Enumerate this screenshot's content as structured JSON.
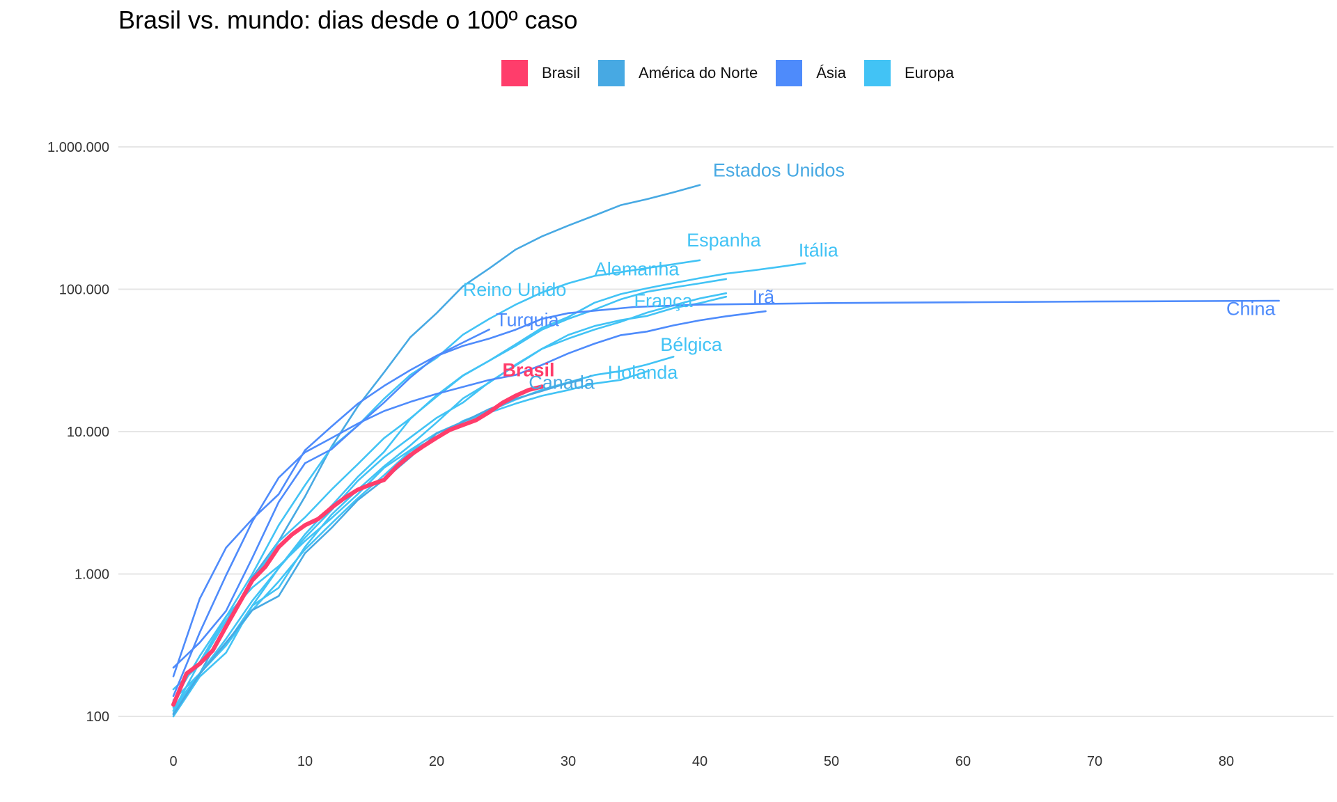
{
  "chart_data": {
    "type": "line",
    "title": "Brasil vs. mundo: dias desde o 100º caso",
    "xlabel": "",
    "ylabel": "",
    "x_scale": "linear",
    "y_scale": "log",
    "xlim": [
      0,
      85
    ],
    "ylim": [
      100,
      1000000
    ],
    "x_ticks": [
      0,
      10,
      20,
      30,
      40,
      50,
      60,
      70,
      80
    ],
    "x_tick_labels": [
      "0",
      "10",
      "20",
      "30",
      "40",
      "50",
      "60",
      "70",
      "80"
    ],
    "y_ticks": [
      100,
      1000,
      10000,
      100000,
      1000000
    ],
    "y_tick_labels": [
      "100",
      "1.000",
      "10.000",
      "100.000",
      "1.000.000"
    ],
    "grid": "horizontal",
    "legend_position": "top",
    "legend": [
      {
        "label": "Brasil",
        "color": "#FF3D6B"
      },
      {
        "label": "América do Norte",
        "color": "#47A9E3"
      },
      {
        "label": "Ásia",
        "color": "#4E8BFB"
      },
      {
        "label": "Europa",
        "color": "#42C3F5"
      }
    ],
    "series": [
      {
        "name": "Brasil",
        "group": "Brasil",
        "color": "#FF3D6B",
        "emphasis": true,
        "x": [
          0,
          1,
          2,
          3,
          4,
          5,
          6,
          7,
          8,
          9,
          10,
          11,
          12,
          13,
          14,
          15,
          16,
          17,
          18,
          19,
          20,
          21,
          22,
          23,
          24,
          25,
          26,
          27,
          28
        ],
        "y": [
          121,
          200,
          234,
          291,
          428,
          621,
          904,
          1128,
          1546,
          1891,
          2201,
          2433,
          2915,
          3417,
          3904,
          4256,
          4579,
          5717,
          6836,
          7910,
          9056,
          10278,
          11130,
          12056,
          13717,
          15927,
          17857,
          19638,
          20727
        ]
      },
      {
        "name": "Estados Unidos",
        "group": "América do Norte",
        "color": "#47A9E3",
        "x": [
          0,
          2,
          4,
          6,
          8,
          10,
          12,
          14,
          16,
          18,
          20,
          22,
          24,
          26,
          28,
          30,
          32,
          34,
          36,
          38,
          40
        ],
        "y": [
          105,
          200,
          430,
          950,
          1700,
          3500,
          7800,
          15000,
          26000,
          46000,
          68000,
          105000,
          140000,
          190000,
          235000,
          280000,
          330000,
          390000,
          430000,
          480000,
          540000
        ]
      },
      {
        "name": "Espanha",
        "group": "Europa",
        "color": "#42C3F5",
        "x": [
          0,
          2,
          4,
          6,
          8,
          10,
          12,
          14,
          16,
          18,
          20,
          22,
          24,
          26,
          28,
          30,
          32,
          34,
          36,
          38,
          40
        ],
        "y": [
          110,
          240,
          500,
          1000,
          2200,
          4200,
          7700,
          11000,
          17000,
          25000,
          33000,
          48000,
          62000,
          78000,
          95000,
          110000,
          124000,
          132000,
          141000,
          150000,
          160000
        ]
      },
      {
        "name": "Itália",
        "group": "Europa",
        "color": "#42C3F5",
        "x": [
          0,
          2,
          4,
          6,
          8,
          10,
          12,
          14,
          16,
          18,
          20,
          22,
          24,
          26,
          28,
          30,
          32,
          34,
          36,
          38,
          40,
          42,
          44,
          46,
          48
        ],
        "y": [
          155,
          230,
          470,
          890,
          1690,
          2500,
          3900,
          5900,
          9000,
          12400,
          17600,
          24700,
          31500,
          41000,
          53600,
          63900,
          80500,
          92500,
          101700,
          110500,
          119800,
          128900,
          135500,
          143600,
          152300
        ]
      },
      {
        "name": "Alemanha",
        "group": "Europa",
        "color": "#42C3F5",
        "x": [
          0,
          2,
          4,
          6,
          8,
          10,
          12,
          14,
          16,
          18,
          20,
          22,
          24,
          26,
          28,
          30,
          32,
          34,
          36,
          38,
          40,
          42
        ],
        "y": [
          130,
          200,
          350,
          650,
          1100,
          1900,
          3000,
          4800,
          7200,
          12300,
          18000,
          24800,
          31500,
          40000,
          52000,
          62000,
          72000,
          85000,
          96000,
          103000,
          110000,
          118000
        ]
      },
      {
        "name": "França",
        "group": "Europa",
        "color": "#42C3F5",
        "x": [
          0,
          2,
          4,
          6,
          8,
          10,
          12,
          14,
          16,
          18,
          20,
          22,
          24,
          26,
          28,
          30,
          32,
          34,
          36,
          38,
          40,
          42
        ],
        "y": [
          100,
          190,
          280,
          600,
          1100,
          1800,
          2800,
          4500,
          6600,
          9100,
          12500,
          16000,
          22300,
          29100,
          38100,
          45000,
          52100,
          59100,
          68600,
          77200,
          86300,
          93800
        ]
      },
      {
        "name": "Reino Unido",
        "group": "Europa",
        "color": "#42C3F5",
        "x": [
          0,
          2,
          4,
          6,
          8,
          10,
          12,
          14,
          16,
          18,
          20,
          22,
          24,
          26,
          28,
          30,
          32,
          34,
          36,
          38,
          40,
          42
        ],
        "y": [
          115,
          200,
          320,
          600,
          800,
          1550,
          2600,
          3900,
          5700,
          8000,
          11600,
          17100,
          22100,
          29500,
          38200,
          47800,
          55200,
          60700,
          65000,
          73800,
          79900,
          88600
        ]
      },
      {
        "name": "Bélgica",
        "group": "Europa",
        "color": "#42C3F5",
        "x": [
          0,
          2,
          4,
          6,
          8,
          10,
          12,
          14,
          16,
          18,
          20,
          22,
          24,
          26,
          28,
          30,
          32,
          34,
          36,
          38
        ],
        "y": [
          109,
          200,
          314,
          559,
          886,
          1486,
          2257,
          3401,
          4937,
          7284,
          9134,
          11899,
          13964,
          16770,
          19691,
          22194,
          24983,
          26667,
          29647,
          33573
        ]
      },
      {
        "name": "Holanda",
        "group": "Europa",
        "color": "#42C3F5",
        "x": [
          0,
          2,
          4,
          6,
          8,
          10,
          12,
          14,
          16,
          18,
          20,
          22,
          24,
          26,
          28,
          30,
          32,
          34,
          36
        ],
        "y": [
          128,
          265,
          503,
          804,
          1135,
          1705,
          2460,
          3631,
          5560,
          7431,
          9762,
          11750,
          13614,
          15723,
          17851,
          19580,
          21762,
          23097,
          26551
        ]
      },
      {
        "name": "Canadá",
        "group": "América do Norte",
        "color": "#47A9E3",
        "x": [
          0,
          2,
          4,
          6,
          8,
          10,
          12,
          14,
          16,
          18,
          20,
          22,
          24,
          26,
          28,
          30,
          31
        ],
        "y": [
          103,
          198,
          330,
          558,
          700,
          1400,
          2100,
          3300,
          4600,
          6600,
          9700,
          11700,
          14400,
          17000,
          19300,
          22000,
          23000
        ]
      },
      {
        "name": "Turquia",
        "group": "Ásia",
        "color": "#4E8BFB",
        "x": [
          0,
          2,
          4,
          6,
          8,
          10,
          12,
          14,
          16,
          18,
          20,
          22,
          24
        ],
        "y": [
          191,
          670,
          1529,
          2433,
          3629,
          7402,
          10827,
          15679,
          20921,
          27069,
          34109,
          42282,
          52167
        ]
      },
      {
        "name": "Irã",
        "group": "Ásia",
        "color": "#4E8BFB",
        "x": [
          0,
          2,
          4,
          6,
          8,
          10,
          12,
          14,
          16,
          18,
          20,
          22,
          24,
          26,
          28,
          30,
          32,
          34,
          36,
          38,
          40,
          42,
          45
        ],
        "y": [
          139,
          388,
          978,
          2336,
          4747,
          7161,
          9000,
          11364,
          13938,
          16169,
          18407,
          20610,
          23049,
          25000,
          29406,
          35408,
          41495,
          47593,
          50468,
          55743,
          60500,
          64586,
          70029
        ]
      },
      {
        "name": "China",
        "group": "Ásia",
        "color": "#4E8BFB",
        "x": [
          0,
          2,
          4,
          6,
          8,
          10,
          12,
          14,
          16,
          18,
          20,
          22,
          24,
          26,
          28,
          30,
          35,
          40,
          50,
          60,
          70,
          84
        ],
        "y": [
          220,
          330,
          550,
          1300,
          3200,
          6000,
          7500,
          11000,
          16000,
          24000,
          34000,
          40000,
          45000,
          52000,
          62000,
          68000,
          75000,
          78000,
          80000,
          81000,
          82000,
          83000
        ]
      }
    ],
    "annotations": [
      {
        "text": "Estados Unidos",
        "series": "Estados Unidos",
        "x": 41,
        "y": 620000
      },
      {
        "text": "Espanha",
        "series": "Espanha",
        "x": 39,
        "y": 200000
      },
      {
        "text": "Itália",
        "series": "Itália",
        "x": 47.5,
        "y": 170000
      },
      {
        "text": "Alemanha",
        "series": "Alemanha",
        "x": 32,
        "y": 125000
      },
      {
        "text": "Reino Unido",
        "series": "Reino Unido",
        "x": 22,
        "y": 90000
      },
      {
        "text": "Irã",
        "series": "Irã",
        "x": 44,
        "y": 80000
      },
      {
        "text": "França",
        "series": "França",
        "x": 35,
        "y": 75000
      },
      {
        "text": "Turquia",
        "series": "Turquia",
        "x": 24.5,
        "y": 55000
      },
      {
        "text": "China",
        "series": "China",
        "x": 80,
        "y": 66000
      },
      {
        "text": "Bélgica",
        "series": "Bélgica",
        "x": 37,
        "y": 37000
      },
      {
        "text": "Brasil",
        "series": "Brasil",
        "x": 25,
        "y": 24500
      },
      {
        "text": "Holanda",
        "series": "Holanda",
        "x": 33,
        "y": 23500
      },
      {
        "text": "Canadá",
        "series": "Canadá",
        "x": 27,
        "y": 20000
      }
    ]
  }
}
